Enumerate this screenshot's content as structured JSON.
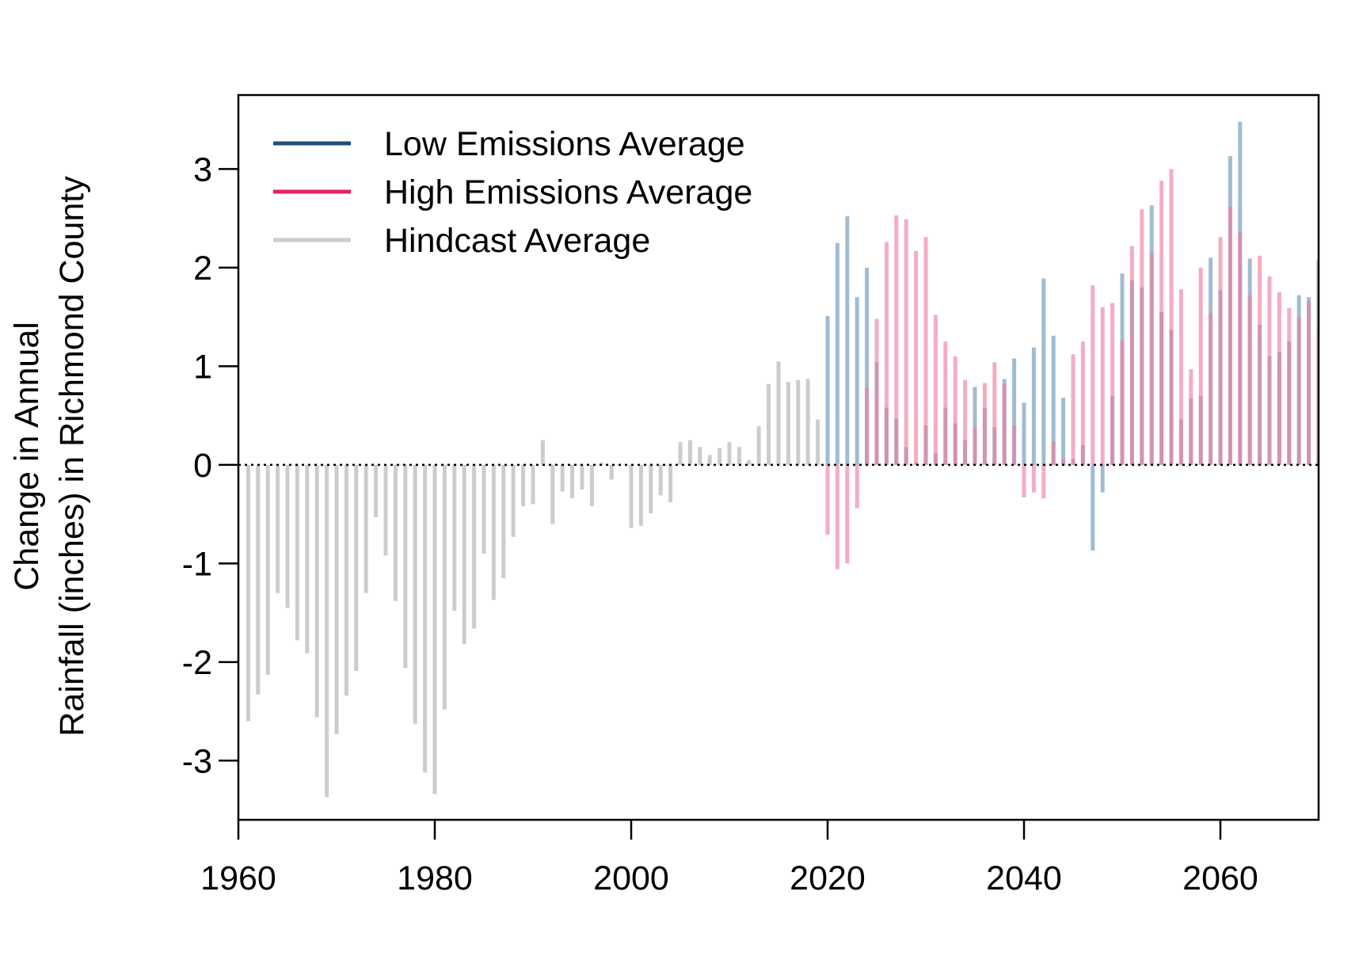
{
  "chart_data": {
    "type": "bar",
    "title": "",
    "xlabel": "",
    "ylabel_lines": [
      "Change in Annual",
      "Rainfall (inches) in Richmond County"
    ],
    "xlim": [
      1960,
      2070
    ],
    "ylim": [
      -3.6,
      3.75
    ],
    "x_ticks": [
      1960,
      1980,
      2000,
      2020,
      2040,
      2060
    ],
    "y_ticks": [
      -3,
      -2,
      -1,
      0,
      1,
      2,
      3
    ],
    "reference_line": 0,
    "grid": false,
    "legend_position": "top-left",
    "series": [
      {
        "name": "Hindcast Average",
        "legend_color": "#cccccc",
        "color": "#cccccc",
        "opacity": 1,
        "x": [
          1961,
          1962,
          1963,
          1964,
          1965,
          1966,
          1967,
          1968,
          1969,
          1970,
          1971,
          1972,
          1973,
          1974,
          1975,
          1976,
          1977,
          1978,
          1979,
          1980,
          1981,
          1982,
          1983,
          1984,
          1985,
          1986,
          1987,
          1988,
          1989,
          1990,
          1991,
          1992,
          1993,
          1994,
          1995,
          1996,
          1997,
          1998,
          1999,
          2000,
          2001,
          2002,
          2003,
          2004,
          2005,
          2006,
          2007,
          2008,
          2009,
          2010,
          2011,
          2012,
          2013,
          2014,
          2015,
          2016,
          2017,
          2018,
          2019
        ],
        "values": [
          -2.6,
          -2.33,
          -2.13,
          -1.3,
          -1.45,
          -1.78,
          -1.91,
          -2.56,
          -3.37,
          -2.73,
          -2.34,
          -2.09,
          -1.3,
          -0.53,
          -0.92,
          -1.38,
          -2.06,
          -2.63,
          -3.12,
          -3.34,
          -2.48,
          -1.48,
          -1.82,
          -1.66,
          -0.9,
          -1.37,
          -1.15,
          -0.73,
          -0.42,
          -0.4,
          0.25,
          -0.6,
          -0.27,
          -0.34,
          -0.25,
          -0.42,
          0.02,
          -0.15,
          0.0,
          -0.64,
          -0.62,
          -0.49,
          -0.31,
          -0.38,
          0.23,
          0.25,
          0.18,
          0.1,
          0.17,
          0.23,
          0.18,
          0.05,
          0.39,
          0.82,
          1.05,
          0.84,
          0.86,
          0.87,
          0.46
        ]
      },
      {
        "name": "Low Emissions Average",
        "legend_color": "#1f4e79",
        "color": "#a0bcd2",
        "opacity": 1,
        "x": [
          2020,
          2021,
          2022,
          2023,
          2024,
          2025,
          2026,
          2027,
          2028,
          2029,
          2030,
          2031,
          2032,
          2033,
          2034,
          2035,
          2036,
          2037,
          2038,
          2039,
          2040,
          2041,
          2042,
          2043,
          2044,
          2045,
          2046,
          2047,
          2048,
          2049,
          2050,
          2051,
          2052,
          2053,
          2054,
          2055,
          2056,
          2057,
          2058,
          2059,
          2060,
          2061,
          2062,
          2063,
          2064,
          2065,
          2066,
          2067,
          2068,
          2069,
          2070
        ],
        "values": [
          1.51,
          2.25,
          2.52,
          1.7,
          2.0,
          1.04,
          0.58,
          0.47,
          0.18,
          0.02,
          0.4,
          0.12,
          0.58,
          0.42,
          0.25,
          0.79,
          0.58,
          0.38,
          0.87,
          1.08,
          0.63,
          1.19,
          1.89,
          1.31,
          0.68,
          0.06,
          0.2,
          -0.87,
          -0.28,
          0.7,
          1.94,
          1.87,
          1.8,
          2.63,
          1.55,
          1.37,
          0.46,
          0.67,
          0.7,
          2.1,
          1.77,
          3.13,
          3.48,
          2.09,
          1.42,
          1.1,
          1.14,
          1.25,
          1.72,
          1.7,
          2.08
        ]
      },
      {
        "name": "High Emissions Average",
        "legend_color": "#e8245c",
        "color": "#f07aa0",
        "opacity": 0.62,
        "x": [
          2020,
          2021,
          2022,
          2023,
          2024,
          2025,
          2026,
          2027,
          2028,
          2029,
          2030,
          2031,
          2032,
          2033,
          2034,
          2035,
          2036,
          2037,
          2038,
          2039,
          2040,
          2041,
          2042,
          2043,
          2044,
          2045,
          2046,
          2047,
          2048,
          2049,
          2050,
          2051,
          2052,
          2053,
          2054,
          2055,
          2056,
          2057,
          2058,
          2059,
          2060,
          2061,
          2062,
          2063,
          2064,
          2065,
          2066,
          2067,
          2068,
          2069,
          2070
        ],
        "values": [
          -0.71,
          -1.06,
          -1.0,
          -0.44,
          0.78,
          1.48,
          2.26,
          2.53,
          2.49,
          2.17,
          2.31,
          1.52,
          1.25,
          1.1,
          0.86,
          0.38,
          0.83,
          1.04,
          0.82,
          0.4,
          -0.33,
          -0.28,
          -0.34,
          0.24,
          0.06,
          1.12,
          1.25,
          1.82,
          1.6,
          1.64,
          1.26,
          2.22,
          2.59,
          2.15,
          2.88,
          3.0,
          1.78,
          0.97,
          2.0,
          1.53,
          2.31,
          2.62,
          2.36,
          1.72,
          2.12,
          1.91,
          1.75,
          1.59,
          1.49,
          1.66,
          1.33
        ]
      }
    ]
  }
}
